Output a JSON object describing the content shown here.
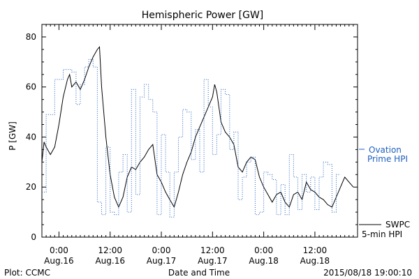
{
  "chart_data": {
    "type": "line",
    "title": "Hemispheric Power [GW]",
    "ylabel": "P [GW]",
    "xlabel": "Date and Time",
    "ylim": [
      0,
      85
    ],
    "xlim": [
      "2015-08-15T20:00",
      "2015-08-18T22:00"
    ],
    "yticks": [
      0,
      20,
      40,
      60,
      80
    ],
    "xticks": [
      {
        "t": "2015-08-16T00:00",
        "line1": "0:00",
        "line2": "Aug.16"
      },
      {
        "t": "2015-08-16T12:00",
        "line1": "12:00",
        "line2": "Aug.16"
      },
      {
        "t": "2015-08-17T00:00",
        "line1": "0:00",
        "line2": "Aug.17"
      },
      {
        "t": "2015-08-17T12:00",
        "line1": "12:00",
        "line2": "Aug.17"
      },
      {
        "t": "2015-08-18T00:00",
        "line1": "0:00",
        "line2": "Aug.18"
      },
      {
        "t": "2015-08-18T12:00",
        "line1": "12:00",
        "line2": "Aug.18"
      }
    ],
    "grid": false,
    "series": [
      {
        "name": "SWPC 5-min HPI",
        "color": "#000000",
        "style": "solid",
        "points": [
          [
            "2015-08-15T20:00",
            30
          ],
          [
            "2015-08-15T20:30",
            38
          ],
          [
            "2015-08-15T21:00",
            36
          ],
          [
            "2015-08-15T22:00",
            33
          ],
          [
            "2015-08-15T23:00",
            36
          ],
          [
            "2015-08-16T00:00",
            45
          ],
          [
            "2015-08-16T01:00",
            56
          ],
          [
            "2015-08-16T02:00",
            63
          ],
          [
            "2015-08-16T02:30",
            65
          ],
          [
            "2015-08-16T03:00",
            60
          ],
          [
            "2015-08-16T04:00",
            62
          ],
          [
            "2015-08-16T05:00",
            59
          ],
          [
            "2015-08-16T06:00",
            63
          ],
          [
            "2015-08-16T07:00",
            68
          ],
          [
            "2015-08-16T08:00",
            72
          ],
          [
            "2015-08-16T09:00",
            75
          ],
          [
            "2015-08-16T09:30",
            76
          ],
          [
            "2015-08-16T10:00",
            60
          ],
          [
            "2015-08-16T11:00",
            40
          ],
          [
            "2015-08-16T12:00",
            25
          ],
          [
            "2015-08-16T13:00",
            16
          ],
          [
            "2015-08-16T14:00",
            12
          ],
          [
            "2015-08-16T15:00",
            16
          ],
          [
            "2015-08-16T16:00",
            24
          ],
          [
            "2015-08-16T17:00",
            28
          ],
          [
            "2015-08-16T18:00",
            27
          ],
          [
            "2015-08-16T19:00",
            30
          ],
          [
            "2015-08-16T20:00",
            32
          ],
          [
            "2015-08-16T21:00",
            35
          ],
          [
            "2015-08-16T22:00",
            37
          ],
          [
            "2015-08-16T23:00",
            25
          ],
          [
            "2015-08-17T00:00",
            22
          ],
          [
            "2015-08-17T01:00",
            18
          ],
          [
            "2015-08-17T02:00",
            15
          ],
          [
            "2015-08-17T03:00",
            12
          ],
          [
            "2015-08-17T04:00",
            18
          ],
          [
            "2015-08-17T05:00",
            25
          ],
          [
            "2015-08-17T06:00",
            30
          ],
          [
            "2015-08-17T07:00",
            34
          ],
          [
            "2015-08-17T08:00",
            40
          ],
          [
            "2015-08-17T09:00",
            44
          ],
          [
            "2015-08-17T10:00",
            48
          ],
          [
            "2015-08-17T11:00",
            52
          ],
          [
            "2015-08-17T12:00",
            56
          ],
          [
            "2015-08-17T12:30",
            61
          ],
          [
            "2015-08-17T13:00",
            58
          ],
          [
            "2015-08-17T14:00",
            46
          ],
          [
            "2015-08-17T15:00",
            42
          ],
          [
            "2015-08-17T16:00",
            40
          ],
          [
            "2015-08-17T17:00",
            37
          ],
          [
            "2015-08-17T18:00",
            28
          ],
          [
            "2015-08-17T19:00",
            26
          ],
          [
            "2015-08-17T20:00",
            30
          ],
          [
            "2015-08-17T21:00",
            32
          ],
          [
            "2015-08-17T22:00",
            31
          ],
          [
            "2015-08-17T23:00",
            24
          ],
          [
            "2015-08-18T00:00",
            20
          ],
          [
            "2015-08-18T01:00",
            17
          ],
          [
            "2015-08-18T02:00",
            14
          ],
          [
            "2015-08-18T03:00",
            17
          ],
          [
            "2015-08-18T04:00",
            18
          ],
          [
            "2015-08-18T05:00",
            14
          ],
          [
            "2015-08-18T06:00",
            12
          ],
          [
            "2015-08-18T07:00",
            17
          ],
          [
            "2015-08-18T08:00",
            18
          ],
          [
            "2015-08-18T09:00",
            15
          ],
          [
            "2015-08-18T10:00",
            22
          ],
          [
            "2015-08-18T11:00",
            19
          ],
          [
            "2015-08-18T12:00",
            18
          ],
          [
            "2015-08-18T13:00",
            16
          ],
          [
            "2015-08-18T14:00",
            15
          ],
          [
            "2015-08-18T15:00",
            13
          ],
          [
            "2015-08-18T16:00",
            12
          ],
          [
            "2015-08-18T17:00",
            16
          ],
          [
            "2015-08-18T18:00",
            20
          ],
          [
            "2015-08-18T19:00",
            24
          ],
          [
            "2015-08-18T20:00",
            22
          ],
          [
            "2015-08-18T21:00",
            20
          ]
        ]
      },
      {
        "name": "Ovation Prime HPI",
        "color": "#1f5fbf",
        "style": "dotted-step",
        "points": [
          [
            "2015-08-15T20:00",
            18
          ],
          [
            "2015-08-15T21:00",
            49
          ],
          [
            "2015-08-15T23:00",
            63
          ],
          [
            "2015-08-16T01:00",
            67
          ],
          [
            "2015-08-16T03:00",
            66
          ],
          [
            "2015-08-16T04:00",
            53
          ],
          [
            "2015-08-16T05:00",
            61
          ],
          [
            "2015-08-16T06:00",
            68
          ],
          [
            "2015-08-16T07:00",
            71
          ],
          [
            "2015-08-16T08:00",
            68
          ],
          [
            "2015-08-16T09:00",
            14
          ],
          [
            "2015-08-16T10:00",
            9
          ],
          [
            "2015-08-16T11:00",
            36
          ],
          [
            "2015-08-16T12:00",
            10
          ],
          [
            "2015-08-16T13:00",
            9
          ],
          [
            "2015-08-16T14:00",
            26
          ],
          [
            "2015-08-16T15:00",
            33
          ],
          [
            "2015-08-16T16:00",
            10
          ],
          [
            "2015-08-16T17:00",
            59
          ],
          [
            "2015-08-16T18:00",
            17
          ],
          [
            "2015-08-16T19:00",
            56
          ],
          [
            "2015-08-16T20:00",
            61
          ],
          [
            "2015-08-16T21:00",
            55
          ],
          [
            "2015-08-16T22:00",
            50
          ],
          [
            "2015-08-16T23:00",
            9
          ],
          [
            "2015-08-17T00:00",
            41
          ],
          [
            "2015-08-17T01:00",
            26
          ],
          [
            "2015-08-17T02:00",
            8
          ],
          [
            "2015-08-17T03:00",
            26
          ],
          [
            "2015-08-17T04:00",
            40
          ],
          [
            "2015-08-17T05:00",
            51
          ],
          [
            "2015-08-17T06:00",
            50
          ],
          [
            "2015-08-17T07:00",
            31
          ],
          [
            "2015-08-17T08:00",
            43
          ],
          [
            "2015-08-17T09:00",
            26
          ],
          [
            "2015-08-17T10:00",
            63
          ],
          [
            "2015-08-17T11:00",
            52
          ],
          [
            "2015-08-17T12:00",
            33
          ],
          [
            "2015-08-17T13:00",
            41
          ],
          [
            "2015-08-17T14:00",
            59
          ],
          [
            "2015-08-17T15:00",
            57
          ],
          [
            "2015-08-17T16:00",
            35
          ],
          [
            "2015-08-17T17:00",
            42
          ],
          [
            "2015-08-17T18:00",
            15
          ],
          [
            "2015-08-17T19:00",
            24
          ],
          [
            "2015-08-17T20:00",
            30
          ],
          [
            "2015-08-17T21:00",
            32
          ],
          [
            "2015-08-17T22:00",
            9
          ],
          [
            "2015-08-17T23:00",
            10
          ],
          [
            "2015-08-18T00:00",
            26
          ],
          [
            "2015-08-18T01:00",
            25
          ],
          [
            "2015-08-18T02:00",
            23
          ],
          [
            "2015-08-18T03:00",
            9
          ],
          [
            "2015-08-18T04:00",
            21
          ],
          [
            "2015-08-18T05:00",
            9
          ],
          [
            "2015-08-18T06:00",
            33
          ],
          [
            "2015-08-18T07:00",
            24
          ],
          [
            "2015-08-18T08:00",
            11
          ],
          [
            "2015-08-18T09:00",
            25
          ],
          [
            "2015-08-18T10:00",
            18
          ],
          [
            "2015-08-18T11:00",
            24
          ],
          [
            "2015-08-18T12:00",
            11
          ],
          [
            "2015-08-18T13:00",
            24
          ],
          [
            "2015-08-18T14:00",
            30
          ],
          [
            "2015-08-18T15:00",
            29
          ],
          [
            "2015-08-18T16:00",
            10
          ],
          [
            "2015-08-18T17:00",
            25
          ]
        ]
      }
    ],
    "legend": {
      "placement": "right",
      "ovation_line1": "Ovation",
      "ovation_line2": "Prime HPI",
      "swpc_line1": "SWPC",
      "swpc_line2": "5-min HPI"
    },
    "footer": {
      "plot_credit": "Plot: CCMC",
      "timestamp": "2015/08/18 19:00:10"
    }
  }
}
